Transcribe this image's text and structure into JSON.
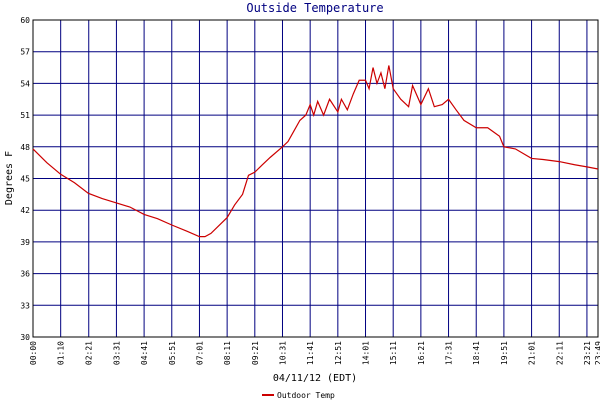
{
  "chart_data": {
    "type": "line",
    "title": "Outside Temperature",
    "xlabel": "04/11/12 (EDT)",
    "ylabel": "Degrees F",
    "x": [
      0,
      35,
      70,
      105,
      140,
      175,
      210,
      245,
      281,
      315,
      351,
      390,
      421,
      435,
      450,
      491,
      510,
      530,
      545,
      561,
      580,
      600,
      631,
      645,
      660,
      675,
      690,
      701,
      710,
      720,
      735,
      750,
      771,
      780,
      795,
      810,
      825,
      841,
      850,
      860,
      870,
      880,
      890,
      900,
      911,
      930,
      950,
      960,
      981,
      1000,
      1015,
      1035,
      1051,
      1070,
      1090,
      1121,
      1150,
      1180,
      1191,
      1220,
      1261,
      1290,
      1331,
      1370,
      1401,
      1429
    ],
    "series": [
      {
        "name": "Outdoor Temp",
        "color": "#cc0000",
        "values": [
          47.8,
          46.5,
          45.4,
          44.6,
          43.6,
          43.1,
          42.7,
          42.3,
          41.6,
          41.2,
          40.6,
          40.0,
          39.5,
          39.5,
          39.8,
          41.3,
          42.5,
          43.5,
          45.3,
          45.6,
          46.3,
          47.0,
          48.0,
          48.5,
          49.5,
          50.5,
          51.0,
          52.0,
          51.0,
          52.3,
          51.0,
          52.5,
          51.3,
          52.5,
          51.5,
          53.0,
          54.3,
          54.3,
          53.5,
          55.5,
          54.0,
          55.0,
          53.5,
          55.7,
          53.5,
          52.5,
          51.8,
          53.8,
          52.0,
          53.5,
          51.8,
          52.0,
          52.5,
          51.5,
          50.5,
          49.8,
          49.8,
          49.0,
          48.0,
          47.8,
          46.9,
          46.8,
          46.6,
          46.3,
          46.1,
          45.9
        ]
      }
    ],
    "xlim": [
      0,
      1429
    ],
    "xticks": [
      {
        "value": 0,
        "label": "00:00"
      },
      {
        "value": 70,
        "label": "01:10"
      },
      {
        "value": 141,
        "label": "02:21"
      },
      {
        "value": 211,
        "label": "03:31"
      },
      {
        "value": 281,
        "label": "04:41"
      },
      {
        "value": 351,
        "label": "05:51"
      },
      {
        "value": 421,
        "label": "07:01"
      },
      {
        "value": 491,
        "label": "08:11"
      },
      {
        "value": 561,
        "label": "09:21"
      },
      {
        "value": 631,
        "label": "10:31"
      },
      {
        "value": 701,
        "label": "11:41"
      },
      {
        "value": 771,
        "label": "12:51"
      },
      {
        "value": 841,
        "label": "14:01"
      },
      {
        "value": 911,
        "label": "15:11"
      },
      {
        "value": 981,
        "label": "16:21"
      },
      {
        "value": 1051,
        "label": "17:31"
      },
      {
        "value": 1121,
        "label": "18:41"
      },
      {
        "value": 1191,
        "label": "19:51"
      },
      {
        "value": 1261,
        "label": "21:01"
      },
      {
        "value": 1331,
        "label": "22:11"
      },
      {
        "value": 1401,
        "label": "23:21"
      },
      {
        "value": 1429,
        "label": "23:49"
      }
    ],
    "ylim": [
      30,
      60
    ],
    "yticks": [
      30,
      33,
      36,
      39,
      42,
      45,
      48,
      51,
      54,
      57,
      60
    ],
    "grid": true,
    "grid_color": "#000080"
  }
}
